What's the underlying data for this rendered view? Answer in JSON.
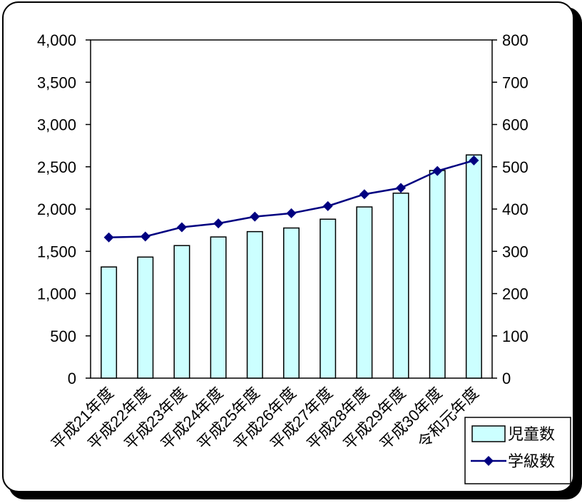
{
  "chart_data": {
    "type": "bar+line",
    "categories": [
      "平成21年度",
      "平成22年度",
      "平成23年度",
      "平成24年度",
      "平成25年度",
      "平成26年度",
      "平成27年度",
      "平成28年度",
      "平成29年度",
      "平成30年度",
      "令和元年度"
    ],
    "series": [
      {
        "name": "児童数",
        "type": "bar",
        "axis": "left",
        "color": "#ccffff",
        "values": [
          1315,
          1432,
          1568,
          1670,
          1733,
          1776,
          1880,
          2025,
          2188,
          2456,
          2640
        ]
      },
      {
        "name": "学級数",
        "type": "line",
        "axis": "right",
        "color": "#000080",
        "values": [
          333,
          335,
          357,
          366,
          382,
          390,
          407,
          435,
          450,
          490,
          515
        ]
      }
    ],
    "left_axis": {
      "ylim": [
        0,
        4000
      ],
      "ticks": [
        "0",
        "500",
        "1,000",
        "1,500",
        "2,000",
        "2,500",
        "3,000",
        "3,500",
        "4,000"
      ]
    },
    "right_axis": {
      "ylim": [
        0,
        800
      ],
      "ticks": [
        "0",
        "100",
        "200",
        "300",
        "400",
        "500",
        "600",
        "700",
        "800"
      ]
    },
    "grid": false,
    "legend_position": "bottom-right"
  }
}
